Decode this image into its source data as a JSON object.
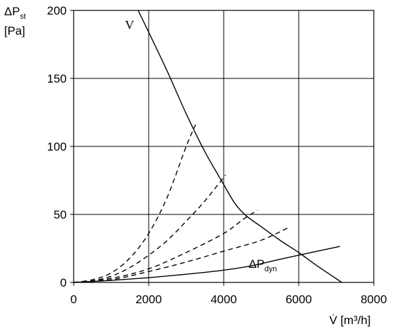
{
  "chart_data": {
    "type": "line",
    "xlabel": "V̇ [m³/h]",
    "ylabel_main": "ΔP",
    "ylabel_sub": "st",
    "ylabel_unit": "[Pa]",
    "xlim": [
      0,
      8000
    ],
    "ylim": [
      0,
      200
    ],
    "xticks": [
      "0",
      "2000",
      "4000",
      "6000",
      "8000"
    ],
    "yticks": [
      "0",
      "50",
      "100",
      "150",
      "200"
    ],
    "grid": true,
    "series": [
      {
        "name": "V",
        "style": "solid",
        "x": [
          1720,
          2000,
          2500,
          3000,
          3500,
          4000,
          4300,
          4600,
          5000,
          5500,
          6000,
          6500,
          7150
        ],
        "y": [
          200,
          184,
          155,
          124,
          96,
          72,
          58,
          49,
          41,
          31,
          22,
          12,
          0
        ]
      },
      {
        "name": "ΔPdyn",
        "label_main": "ΔP",
        "label_sub": "dyn",
        "style": "solid",
        "x": [
          0,
          1000,
          2000,
          3000,
          4000,
          4700,
          5500,
          6500,
          7100
        ],
        "y": [
          0,
          1.5,
          3.5,
          6,
          9,
          12,
          17,
          23,
          26.5
        ]
      },
      {
        "name": "",
        "style": "dashed",
        "x": [
          0,
          500,
          1000,
          1500,
          2000,
          2500,
          3000,
          3250
        ],
        "y": [
          0,
          2,
          7,
          18,
          36,
          63,
          100,
          116
        ]
      },
      {
        "name": "",
        "style": "dashed",
        "x": [
          0,
          500,
          1000,
          1500,
          2000,
          2500,
          3000,
          3500,
          4050
        ],
        "y": [
          0,
          1.2,
          4.5,
          11,
          20,
          31,
          45,
          60,
          79
        ]
      },
      {
        "name": "",
        "style": "dashed",
        "x": [
          0,
          1000,
          2000,
          3000,
          4000,
          4550,
          4900
        ],
        "y": [
          0,
          3,
          10,
          22,
          36,
          47,
          53
        ]
      },
      {
        "name": "",
        "style": "dashed",
        "x": [
          0,
          1000,
          2000,
          3000,
          4000,
          5000,
          5700
        ],
        "y": [
          0,
          2,
          8,
          15,
          23,
          31,
          40
        ]
      }
    ]
  }
}
